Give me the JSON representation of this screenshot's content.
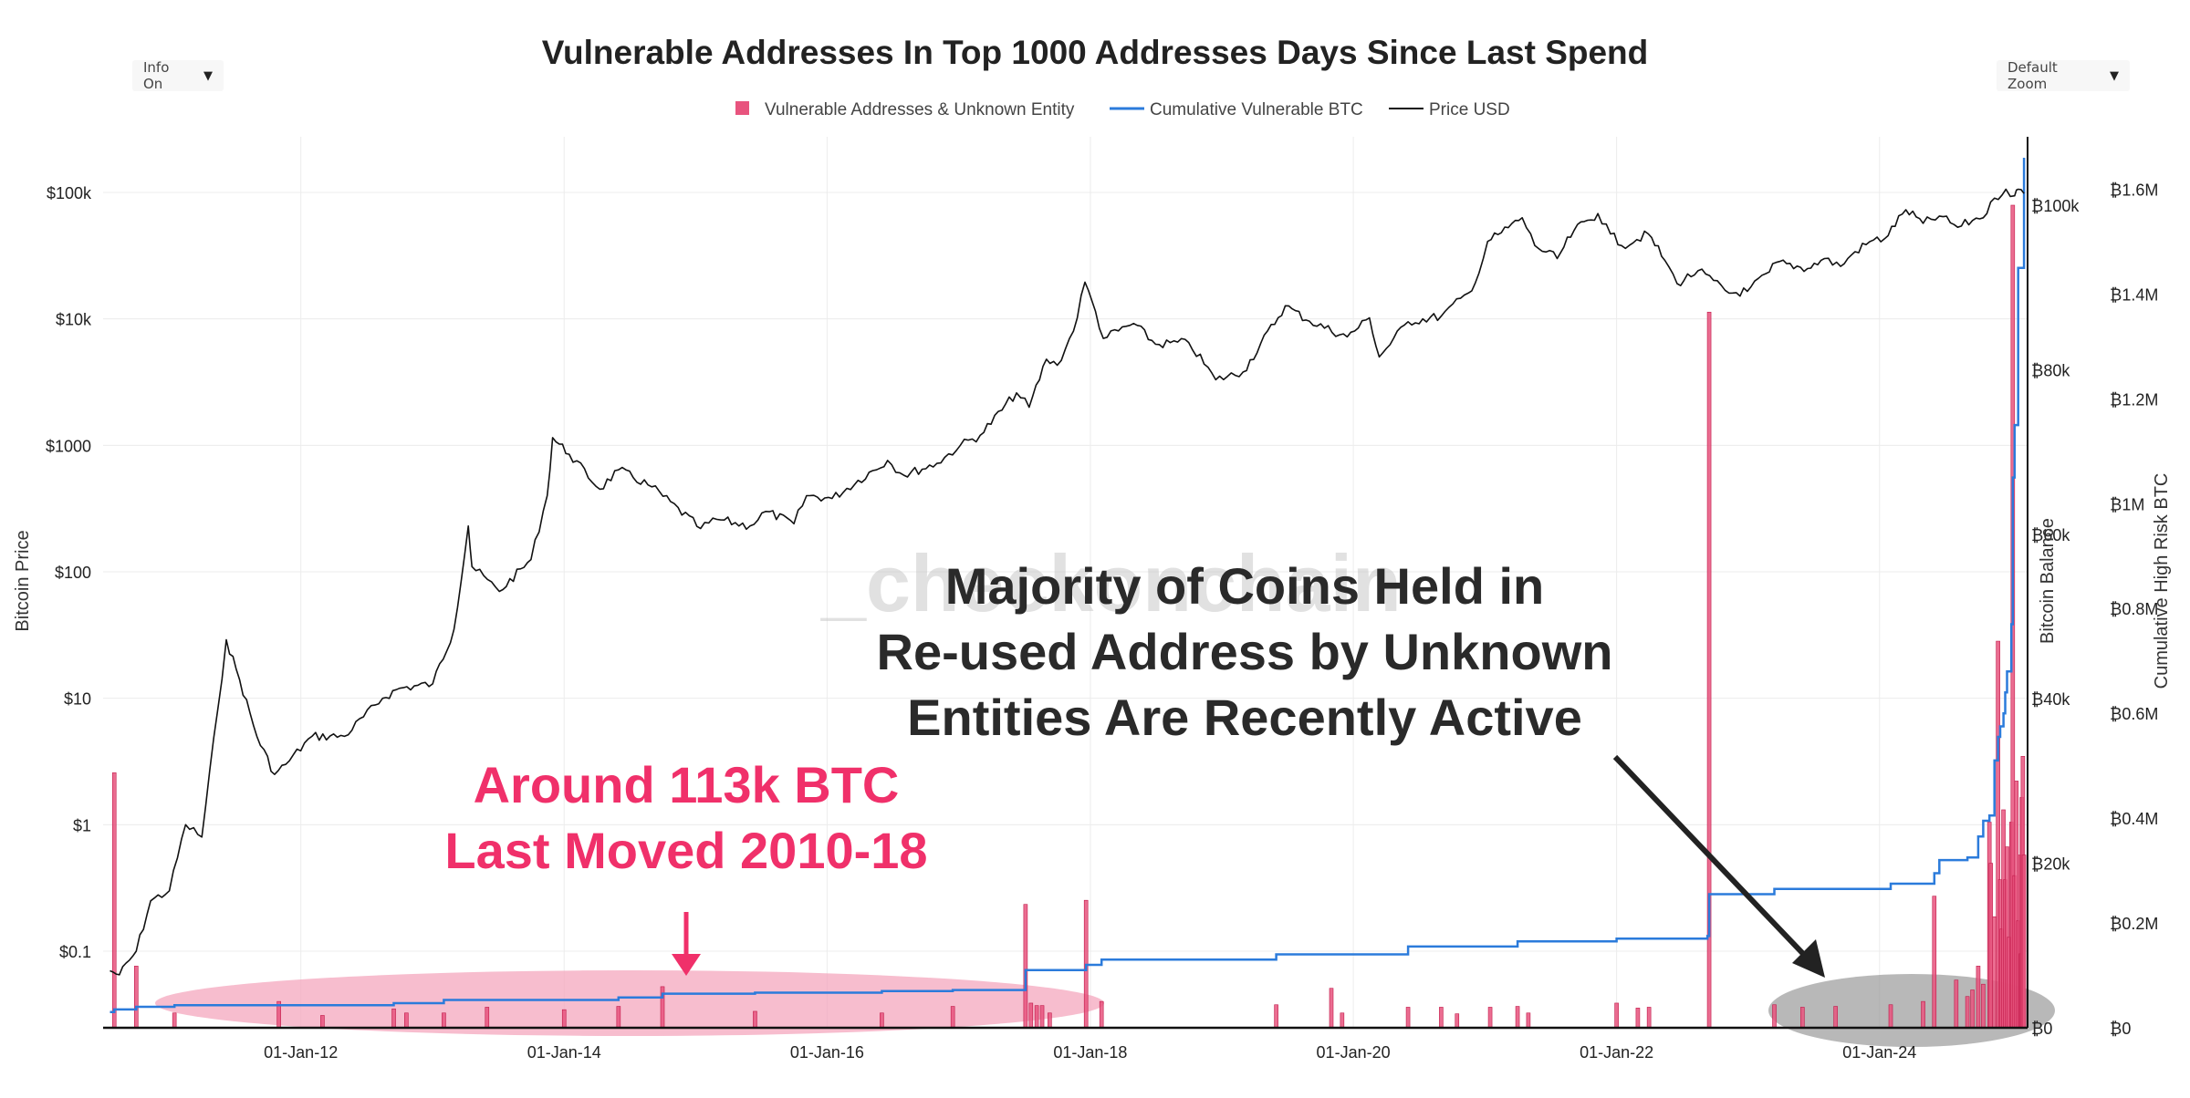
{
  "controls": {
    "info_label": "Info On",
    "zoom_label": "Default Zoom"
  },
  "annotations": {
    "watermark": "_checkonchain",
    "pink_callout_line1": "Around 113k BTC",
    "pink_callout_line2": "Last Moved 2010-18",
    "dark_callout_line1": "Majority of Coins Held in",
    "dark_callout_line2": "Re-used Address by Unknown",
    "dark_callout_line3": "Entities Are Recently Active"
  },
  "colors": {
    "bars": "#e8547e",
    "cumulative": "#2b7bdb",
    "price": "#111111",
    "pink_text": "#f0306a",
    "pink_ellipse": "#f4a7bd",
    "gray_ellipse": "#9a9a9a"
  },
  "chart_data": {
    "type": "bar",
    "title": "Vulnerable Addresses In Top 1000 Addresses Days Since Last Spend",
    "legend": [
      "Vulnerable Addresses & Unknown Entity",
      "Cumulative Vulnerable BTC",
      "Price USD"
    ],
    "legend_position": "top-center",
    "grid": true,
    "xlim": [
      "2010-07-01",
      "2025-02-15"
    ],
    "x_ticks": [
      "01-Jan-12",
      "01-Jan-14",
      "01-Jan-16",
      "01-Jan-18",
      "01-Jan-20",
      "01-Jan-22",
      "01-Jan-24"
    ],
    "axes": {
      "price": {
        "label": "Bitcoin Price",
        "scale": "log",
        "ylim": [
          0.01,
          200000
        ],
        "ticks": [
          0.1,
          1,
          10,
          100,
          1000,
          10000,
          100000
        ],
        "tick_labels": [
          "$0.1",
          "$1",
          "$10",
          "$100",
          "$1000",
          "$10k",
          "$100k"
        ]
      },
      "balance": {
        "label": "Bitcoin Balance",
        "ylim": [
          0,
          100000
        ],
        "ticks": [
          0,
          20000,
          40000,
          60000,
          80000,
          100000
        ],
        "tick_labels": [
          "₿0",
          "₿20k",
          "₿40k",
          "₿60k",
          "₿80k",
          "₿100k"
        ]
      },
      "cumulative": {
        "label": "Cumulative High Risk BTC",
        "ylim": [
          0,
          1700000
        ],
        "ticks": [
          0,
          200000,
          400000,
          600000,
          800000,
          1000000,
          1200000,
          1400000,
          1600000
        ],
        "tick_labels": [
          "₿0",
          "₿0.2M",
          "₿0.4M",
          "₿0.6M",
          "₿0.8M",
          "₿1M",
          "₿1.2M",
          "₿1.4M",
          "₿1.6M"
        ]
      }
    },
    "series": [
      {
        "name": "Vulnerable Addresses & Unknown Entity",
        "kind": "bar",
        "axis": "balance",
        "x": [
          "2010-08-01",
          "2010-10-01",
          "2011-01-15",
          "2011-11-01",
          "2012-03-01",
          "2012-09-15",
          "2012-10-20",
          "2013-02-01",
          "2013-06-01",
          "2014-01-01",
          "2014-06-01",
          "2014-10-01",
          "2015-06-15",
          "2016-06-01",
          "2016-12-15",
          "2017-07-05",
          "2017-07-20",
          "2017-08-05",
          "2017-08-20",
          "2017-09-10",
          "2017-12-20",
          "2018-02-01",
          "2019-06-01",
          "2019-11-01",
          "2019-12-01",
          "2020-06-01",
          "2020-09-01",
          "2020-10-15",
          "2021-01-15",
          "2021-04-01",
          "2021-05-01",
          "2022-01-01",
          "2022-03-01",
          "2022-04-01",
          "2022-09-15",
          "2023-03-15",
          "2023-06-01",
          "2023-09-01",
          "2024-02-01",
          "2024-05-01",
          "2024-06-01",
          "2024-08-01",
          "2024-09-01",
          "2024-09-15",
          "2024-10-01",
          "2024-10-15",
          "2024-11-01",
          "2024-11-05",
          "2024-11-15",
          "2024-11-25",
          "2024-12-01",
          "2024-12-05",
          "2024-12-10",
          "2024-12-15",
          "2024-12-20",
          "2024-12-25",
          "2025-01-01",
          "2025-01-05",
          "2025-01-10",
          "2025-01-15",
          "2025-01-20",
          "2025-01-25",
          "2025-01-28",
          "2025-01-30",
          "2025-02-02",
          "2025-02-05"
        ],
        "values": [
          31000,
          7500,
          1800,
          3200,
          1500,
          2300,
          1800,
          1800,
          2500,
          2200,
          2600,
          5000,
          2000,
          1800,
          2600,
          15000,
          3000,
          2700,
          2700,
          1800,
          15500,
          3200,
          2800,
          4800,
          1800,
          2500,
          2500,
          1700,
          2500,
          2600,
          1800,
          3000,
          2400,
          2500,
          87000,
          2800,
          2500,
          2600,
          2800,
          3200,
          16000,
          5800,
          3800,
          4600,
          7500,
          5300,
          25000,
          20000,
          13500,
          47000,
          18000,
          12000,
          26500,
          18000,
          22000,
          11000,
          25000,
          100000,
          18500,
          30000,
          13000,
          21000,
          9000,
          28000,
          33000,
          21000
        ]
      },
      {
        "name": "Cumulative Vulnerable BTC",
        "kind": "line",
        "axis": "cumulative",
        "x": [
          "2010-07-20",
          "2010-08-01",
          "2010-10-01",
          "2011-01-15",
          "2012-09-15",
          "2013-02-01",
          "2014-06-01",
          "2014-10-01",
          "2015-06-15",
          "2016-06-01",
          "2016-12-15",
          "2017-07-05",
          "2017-12-20",
          "2018-02-01",
          "2019-06-01",
          "2020-06-01",
          "2021-04-01",
          "2022-01-01",
          "2022-09-10",
          "2022-09-15",
          "2023-03-15",
          "2024-02-01",
          "2024-06-01",
          "2024-06-15",
          "2024-09-01",
          "2024-10-01",
          "2024-10-15",
          "2024-11-01",
          "2024-11-15",
          "2024-11-25",
          "2024-12-01",
          "2024-12-10",
          "2024-12-15",
          "2024-12-20",
          "2025-01-01",
          "2025-01-05",
          "2025-01-10",
          "2025-01-20",
          "2025-02-05"
        ],
        "values": [
          30000,
          35000,
          40000,
          43000,
          47000,
          53000,
          58000,
          65000,
          67000,
          70000,
          72000,
          110000,
          120000,
          130000,
          140000,
          155000,
          165000,
          170000,
          175000,
          255000,
          265000,
          275000,
          295000,
          320000,
          325000,
          365000,
          395000,
          405000,
          510000,
          555000,
          575000,
          600000,
          640000,
          680000,
          770000,
          1050000,
          1150000,
          1450000,
          1660000
        ]
      },
      {
        "name": "Price USD",
        "kind": "line",
        "axis": "price",
        "x": [
          "2010-07-20",
          "2010-08-15",
          "2010-10-01",
          "2010-11-10",
          "2011-01-01",
          "2011-02-15",
          "2011-04-01",
          "2011-05-15",
          "2011-06-08",
          "2011-07-15",
          "2011-09-01",
          "2011-10-20",
          "2011-11-20",
          "2012-02-01",
          "2012-05-01",
          "2012-08-15",
          "2012-10-01",
          "2013-01-01",
          "2013-03-01",
          "2013-04-10",
          "2013-04-20",
          "2013-07-05",
          "2013-10-01",
          "2013-11-15",
          "2013-11-30",
          "2014-01-15",
          "2014-04-10",
          "2014-06-01",
          "2014-09-01",
          "2015-01-15",
          "2015-03-01",
          "2015-06-01",
          "2015-07-15",
          "2015-10-01",
          "2015-11-05",
          "2016-01-15",
          "2016-06-17",
          "2016-08-01",
          "2016-11-01",
          "2017-01-05",
          "2017-03-01",
          "2017-06-10",
          "2017-07-15",
          "2017-09-01",
          "2017-10-01",
          "2017-11-15",
          "2017-12-17",
          "2018-01-15",
          "2018-02-06",
          "2018-05-01",
          "2018-07-01",
          "2018-10-01",
          "2018-12-15",
          "2019-03-01",
          "2019-06-26",
          "2019-09-01",
          "2019-12-15",
          "2020-02-15",
          "2020-03-13",
          "2020-06-01",
          "2020-09-01",
          "2020-11-15",
          "2020-12-15",
          "2021-01-08",
          "2021-02-15",
          "2021-04-14",
          "2021-05-19",
          "2021-07-20",
          "2021-09-05",
          "2021-11-10",
          "2021-12-15",
          "2022-01-15",
          "2022-03-30",
          "2022-05-15",
          "2022-06-18",
          "2022-08-15",
          "2022-11-09",
          "2022-12-30",
          "2023-03-01",
          "2023-03-20",
          "2023-06-15",
          "2023-08-01",
          "2023-09-15",
          "2023-10-25",
          "2023-12-15",
          "2024-01-15",
          "2024-03-14",
          "2024-05-01",
          "2024-06-15",
          "2024-08-05",
          "2024-09-15",
          "2024-10-25",
          "2024-11-15",
          "2024-12-17",
          "2025-01-10",
          "2025-01-20",
          "2025-02-05"
        ],
        "values": [
          0.07,
          0.065,
          0.1,
          0.25,
          0.3,
          1.0,
          0.8,
          8,
          29,
          14,
          5,
          2.5,
          3,
          5,
          5,
          10,
          12,
          13,
          35,
          230,
          110,
          70,
          125,
          400,
          1150,
          850,
          450,
          640,
          470,
          220,
          260,
          230,
          300,
          240,
          400,
          380,
          760,
          580,
          720,
          1000,
          1200,
          2600,
          2000,
          4800,
          4300,
          8000,
          19500,
          11500,
          7000,
          9200,
          6300,
          6500,
          3300,
          3800,
          12700,
          9600,
          7200,
          10200,
          5000,
          9500,
          10500,
          16000,
          23000,
          41000,
          48000,
          63000,
          38000,
          30000,
          50000,
          68000,
          47000,
          38000,
          47000,
          29000,
          19000,
          24000,
          16000,
          16500,
          23500,
          28000,
          25000,
          30000,
          26000,
          34000,
          42000,
          43000,
          73000,
          57000,
          65000,
          53000,
          60000,
          68000,
          90000,
          106000,
          94000,
          106000,
          98000
        ]
      }
    ]
  }
}
